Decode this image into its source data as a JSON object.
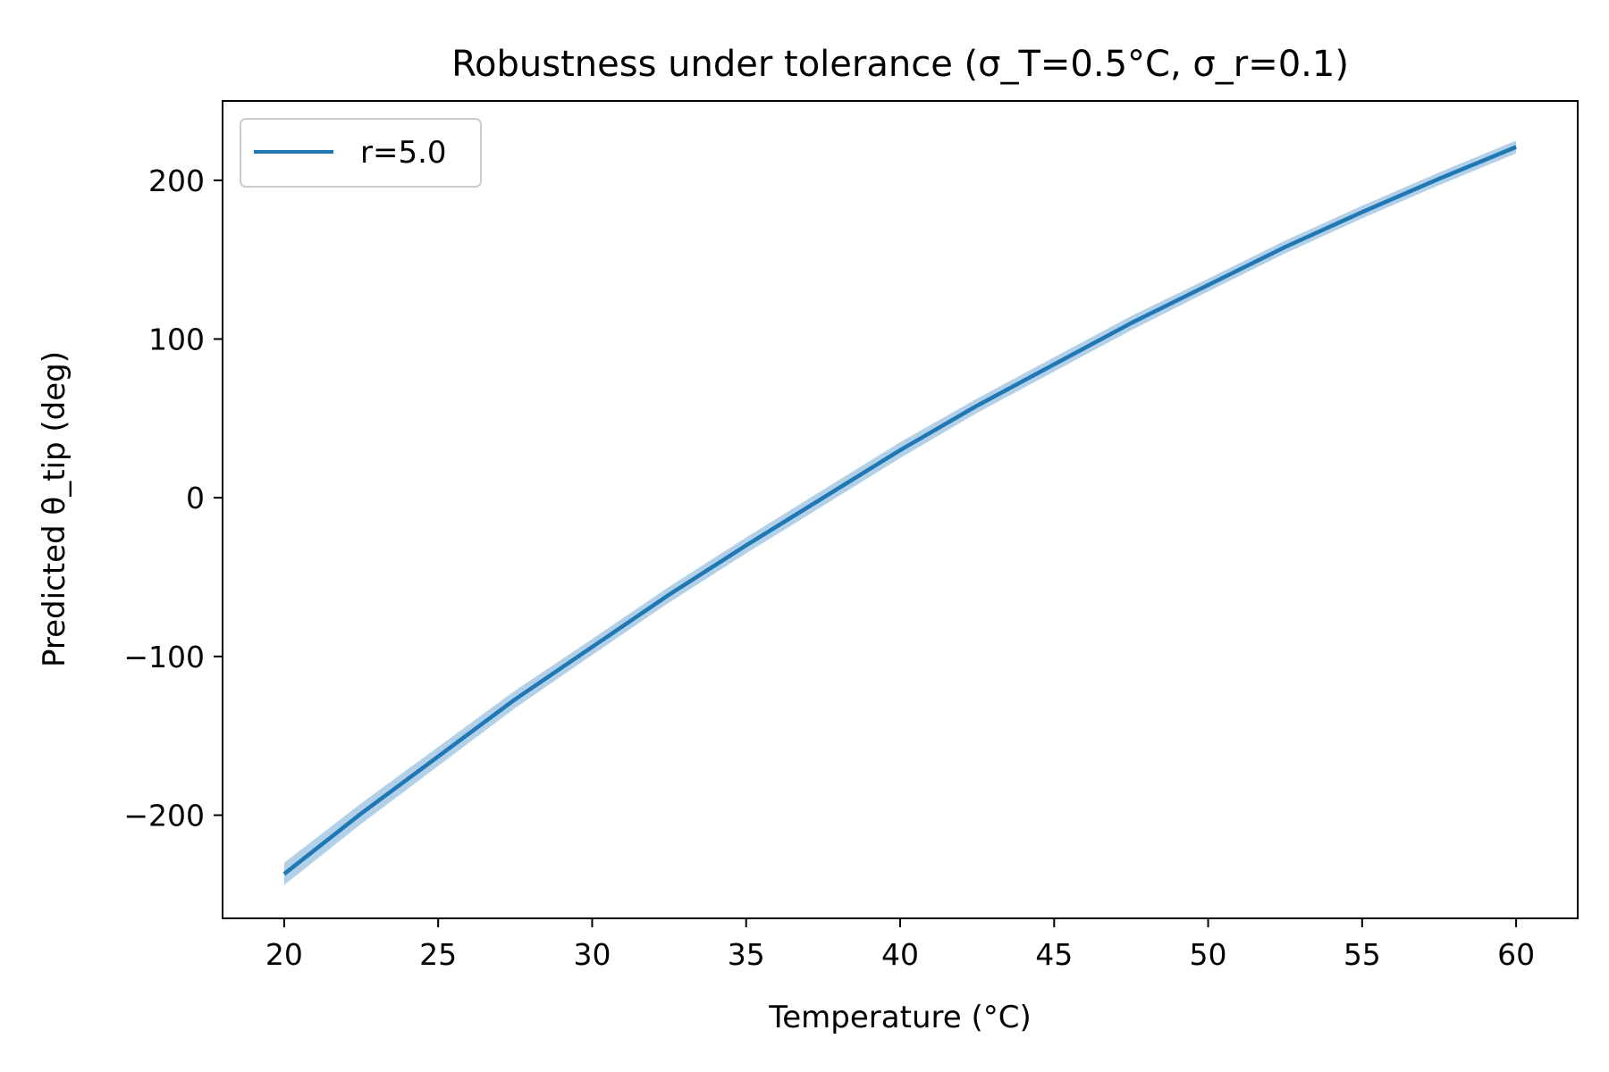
{
  "chart_data": {
    "type": "line",
    "title": "Robustness under tolerance (σ_T=0.5°C, σ_r=0.1)",
    "xlabel": "Temperature (°C)",
    "ylabel": "Predicted θ_tip (deg)",
    "xlim": [
      18,
      62
    ],
    "ylim": [
      -265,
      250
    ],
    "xticks": [
      20,
      25,
      30,
      35,
      40,
      45,
      50,
      55,
      60
    ],
    "xtick_labels": [
      "20",
      "25",
      "30",
      "35",
      "40",
      "45",
      "50",
      "55",
      "60"
    ],
    "yticks": [
      -200,
      -100,
      0,
      100,
      200
    ],
    "ytick_labels": [
      "−200",
      "−100",
      "0",
      "100",
      "200"
    ],
    "grid": false,
    "legend_position": "top-left",
    "series": [
      {
        "name": "r=5.0",
        "color": "#1f77b4",
        "band_color": "#a6c8e5",
        "x": [
          20,
          22.5,
          25,
          27.5,
          30,
          32.5,
          35,
          37.5,
          40,
          42.5,
          45,
          47.5,
          50,
          52.5,
          55,
          57.5,
          60
        ],
        "y": [
          -237,
          -199,
          -163,
          -127,
          -94,
          -61,
          -30,
          0,
          30,
          58,
          84,
          110,
          134,
          158,
          180,
          201,
          221
        ],
        "band_halfwidth": [
          7,
          6.5,
          6,
          5.5,
          5,
          5,
          5,
          5,
          5,
          4.5,
          4.5,
          4.5,
          4,
          4,
          4,
          4,
          4
        ]
      }
    ]
  }
}
